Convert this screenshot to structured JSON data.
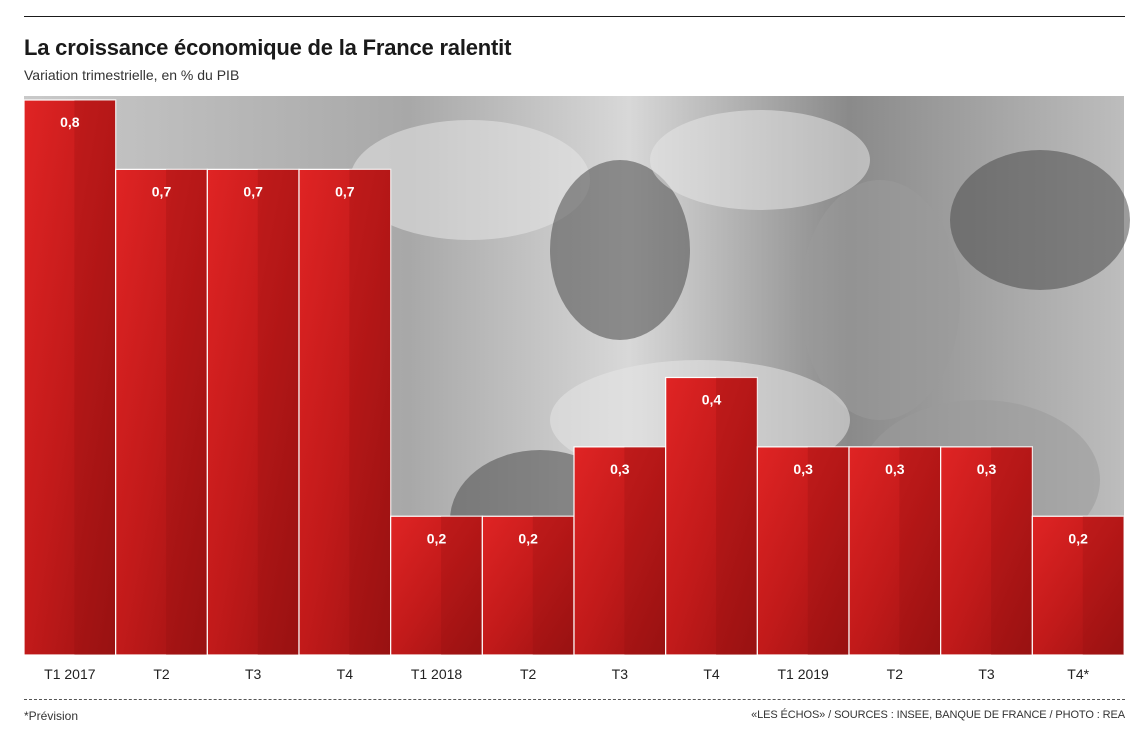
{
  "header": {
    "title": "La croissance économique de la France ralentit",
    "subtitle": "Variation trimestrielle, en % du PIB"
  },
  "footer": {
    "footnote": "*Prévision",
    "credit": "«LES ÉCHOS» / SOURCES : INSEE, BANQUE DE FRANCE / PHOTO : REA"
  },
  "colors": {
    "bar": "#d41f1f",
    "bar_dark": "#8e1010",
    "photo_light": "#e6e6e6",
    "photo_mid": "#9a9a9a",
    "photo_dark": "#4a4a4a"
  },
  "chart_data": {
    "type": "bar",
    "title": "La croissance économique de la France ralentit",
    "subtitle": "Variation trimestrielle, en % du PIB",
    "categories": [
      "T1 2017",
      "T2",
      "T3",
      "T4",
      "T1 2018",
      "T2",
      "T3",
      "T4",
      "T1 2019",
      "T2",
      "T3",
      "T4*"
    ],
    "values": [
      0.8,
      0.7,
      0.7,
      0.7,
      0.2,
      0.2,
      0.3,
      0.4,
      0.3,
      0.3,
      0.3,
      0.2
    ],
    "value_labels": [
      "0,8",
      "0,7",
      "0,7",
      "0,7",
      "0,2",
      "0,2",
      "0,3",
      "0,4",
      "0,3",
      "0,3",
      "0,3",
      "0,2"
    ],
    "ylim": [
      0,
      0.8
    ],
    "grid": false,
    "legend": "none",
    "background": "photo"
  }
}
